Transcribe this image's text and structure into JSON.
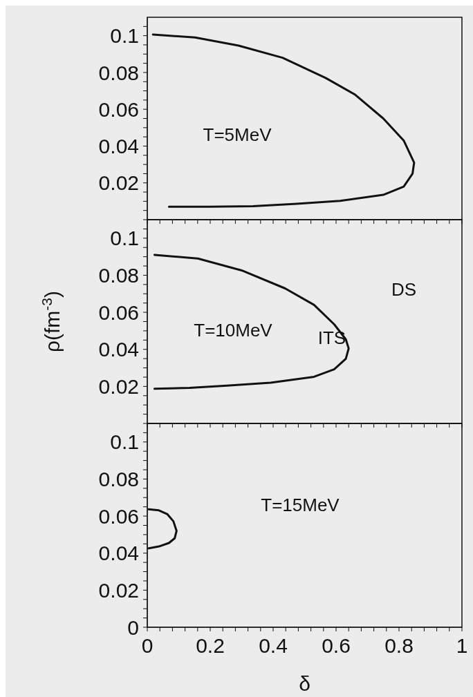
{
  "chart_data": [
    {
      "type": "line",
      "xlim": [
        0,
        1
      ],
      "ylim": [
        0,
        0.11
      ],
      "tick_labels": "y",
      "line_style": "solid",
      "marker": "none",
      "xticks": [
        0,
        {
          "value": 0.04,
          "label": null
        },
        {
          "value": 0.08,
          "label": null
        },
        {
          "value": 0.12,
          "label": null
        },
        {
          "value": 0.16,
          "label": null
        },
        0.2,
        {
          "value": 0.24,
          "label": null
        },
        {
          "value": 0.28,
          "label": null
        },
        {
          "value": 0.32,
          "label": null
        },
        {
          "value": 0.36,
          "label": null
        },
        0.4,
        {
          "value": 0.44,
          "label": null
        },
        {
          "value": 0.48,
          "label": null
        },
        {
          "value": 0.52,
          "label": null
        },
        {
          "value": 0.56,
          "label": null
        },
        0.6,
        {
          "value": 0.64,
          "label": null
        },
        {
          "value": 0.68,
          "label": null
        },
        {
          "value": 0.72,
          "label": null
        },
        {
          "value": 0.76,
          "label": null
        },
        0.8,
        {
          "value": 0.84,
          "label": null
        },
        {
          "value": 0.88,
          "label": null
        },
        {
          "value": 0.92,
          "label": null
        },
        {
          "value": 0.96,
          "label": null
        },
        1
      ],
      "yticks": [
        {
          "value": 0,
          "label": null
        },
        {
          "value": 0.005,
          "label": null
        },
        {
          "value": 0.01,
          "label": null
        },
        {
          "value": 0.015,
          "label": null
        },
        0.02,
        {
          "value": 0.025,
          "label": null
        },
        {
          "value": 0.03,
          "label": null
        },
        {
          "value": 0.035,
          "label": null
        },
        0.04,
        {
          "value": 0.045,
          "label": null
        },
        {
          "value": 0.05,
          "label": null
        },
        {
          "value": 0.055,
          "label": null
        },
        0.06,
        {
          "value": 0.065,
          "label": null
        },
        {
          "value": 0.07,
          "label": null
        },
        {
          "value": 0.075,
          "label": null
        },
        0.08,
        {
          "value": 0.085,
          "label": null
        },
        {
          "value": 0.09,
          "label": null
        },
        {
          "value": 0.095,
          "label": null
        },
        0.1,
        {
          "value": 0.105,
          "label": null
        }
      ],
      "annotations": [
        "T=5MeV"
      ],
      "series": [
        {
          "color": "#111111",
          "x": [
            0.018,
            0.152,
            0.29,
            0.43,
            0.567,
            0.66,
            0.75,
            0.815,
            0.848,
            0.843,
            0.815,
            0.75,
            0.613,
            0.475,
            0.336,
            0.198,
            0.069
          ],
          "values": [
            0.1006,
            0.099,
            0.0946,
            0.088,
            0.077,
            0.068,
            0.055,
            0.043,
            0.031,
            0.025,
            0.018,
            0.0135,
            0.0102,
            0.0086,
            0.0073,
            0.007,
            0.007
          ]
        }
      ]
    },
    {
      "type": "line",
      "xlim": [
        0,
        1
      ],
      "ylim": [
        0,
        0.11
      ],
      "tick_labels": "y",
      "line_style": "solid",
      "marker": "none",
      "ylabel": "ρ(fm$^{-3}$)",
      "xticks": [
        0,
        {
          "value": 0.04,
          "label": null
        },
        {
          "value": 0.08,
          "label": null
        },
        {
          "value": 0.12,
          "label": null
        },
        {
          "value": 0.16,
          "label": null
        },
        0.2,
        {
          "value": 0.24,
          "label": null
        },
        {
          "value": 0.28,
          "label": null
        },
        {
          "value": 0.32,
          "label": null
        },
        {
          "value": 0.36,
          "label": null
        },
        0.4,
        {
          "value": 0.44,
          "label": null
        },
        {
          "value": 0.48,
          "label": null
        },
        {
          "value": 0.52,
          "label": null
        },
        {
          "value": 0.56,
          "label": null
        },
        0.6,
        {
          "value": 0.64,
          "label": null
        },
        {
          "value": 0.68,
          "label": null
        },
        {
          "value": 0.72,
          "label": null
        },
        {
          "value": 0.76,
          "label": null
        },
        0.8,
        {
          "value": 0.84,
          "label": null
        },
        {
          "value": 0.88,
          "label": null
        },
        {
          "value": 0.92,
          "label": null
        },
        {
          "value": 0.96,
          "label": null
        },
        1
      ],
      "yticks": [
        {
          "value": 0,
          "label": null
        },
        {
          "value": 0.005,
          "label": null
        },
        {
          "value": 0.01,
          "label": null
        },
        {
          "value": 0.015,
          "label": null
        },
        0.02,
        {
          "value": 0.025,
          "label": null
        },
        {
          "value": 0.03,
          "label": null
        },
        {
          "value": 0.035,
          "label": null
        },
        0.04,
        {
          "value": 0.045,
          "label": null
        },
        {
          "value": 0.05,
          "label": null
        },
        {
          "value": 0.055,
          "label": null
        },
        0.06,
        {
          "value": 0.065,
          "label": null
        },
        {
          "value": 0.07,
          "label": null
        },
        {
          "value": 0.075,
          "label": null
        },
        0.08,
        {
          "value": 0.085,
          "label": null
        },
        {
          "value": 0.09,
          "label": null
        },
        {
          "value": 0.095,
          "label": null
        },
        0.1,
        {
          "value": 0.105,
          "label": null
        }
      ],
      "annotations": [
        "T=10MeV",
        "ITS",
        "DS"
      ],
      "series": [
        {
          "color": "#111111",
          "x": [
            0.023,
            0.161,
            0.3,
            0.438,
            0.53,
            0.594,
            0.631,
            0.64,
            0.631,
            0.594,
            0.53,
            0.392,
            0.253,
            0.134,
            0.023
          ],
          "values": [
            0.091,
            0.089,
            0.0826,
            0.0729,
            0.064,
            0.0535,
            0.0454,
            0.0405,
            0.0349,
            0.0292,
            0.0252,
            0.022,
            0.0204,
            0.0192,
            0.0187
          ]
        }
      ]
    },
    {
      "type": "line",
      "xlim": [
        0,
        1
      ],
      "ylim": [
        0,
        0.11
      ],
      "line_style": "solid",
      "marker": "none",
      "xlabel": "δ",
      "xticks": [
        0,
        {
          "value": 0.04,
          "label": null
        },
        {
          "value": 0.08,
          "label": null
        },
        {
          "value": 0.12,
          "label": null
        },
        {
          "value": 0.16,
          "label": null
        },
        0.2,
        {
          "value": 0.24,
          "label": null
        },
        {
          "value": 0.28,
          "label": null
        },
        {
          "value": 0.32,
          "label": null
        },
        {
          "value": 0.36,
          "label": null
        },
        0.4,
        {
          "value": 0.44,
          "label": null
        },
        {
          "value": 0.48,
          "label": null
        },
        {
          "value": 0.52,
          "label": null
        },
        {
          "value": 0.56,
          "label": null
        },
        0.6,
        {
          "value": 0.64,
          "label": null
        },
        {
          "value": 0.68,
          "label": null
        },
        {
          "value": 0.72,
          "label": null
        },
        {
          "value": 0.76,
          "label": null
        },
        0.8,
        {
          "value": 0.84,
          "label": null
        },
        {
          "value": 0.88,
          "label": null
        },
        {
          "value": 0.92,
          "label": null
        },
        {
          "value": 0.96,
          "label": null
        },
        1
      ],
      "yticks": [
        0,
        {
          "value": 0.005,
          "label": null
        },
        {
          "value": 0.01,
          "label": null
        },
        {
          "value": 0.015,
          "label": null
        },
        0.02,
        {
          "value": 0.025,
          "label": null
        },
        {
          "value": 0.03,
          "label": null
        },
        {
          "value": 0.035,
          "label": null
        },
        0.04,
        {
          "value": 0.045,
          "label": null
        },
        {
          "value": 0.05,
          "label": null
        },
        {
          "value": 0.055,
          "label": null
        },
        0.06,
        {
          "value": 0.065,
          "label": null
        },
        {
          "value": 0.07,
          "label": null
        },
        {
          "value": 0.075,
          "label": null
        },
        0.08,
        {
          "value": 0.085,
          "label": null
        },
        {
          "value": 0.09,
          "label": null
        },
        {
          "value": 0.095,
          "label": null
        },
        0.1,
        {
          "value": 0.105,
          "label": null
        }
      ],
      "annotations": [
        "T=15MeV"
      ],
      "series": [
        {
          "color": "#111111",
          "x": [
            0.0046,
            0.037,
            0.064,
            0.083,
            0.093,
            0.087,
            0.069,
            0.037,
            0.0046
          ],
          "values": [
            0.0637,
            0.0631,
            0.061,
            0.0572,
            0.052,
            0.048,
            0.0455,
            0.0436,
            0.0426
          ]
        }
      ]
    }
  ]
}
